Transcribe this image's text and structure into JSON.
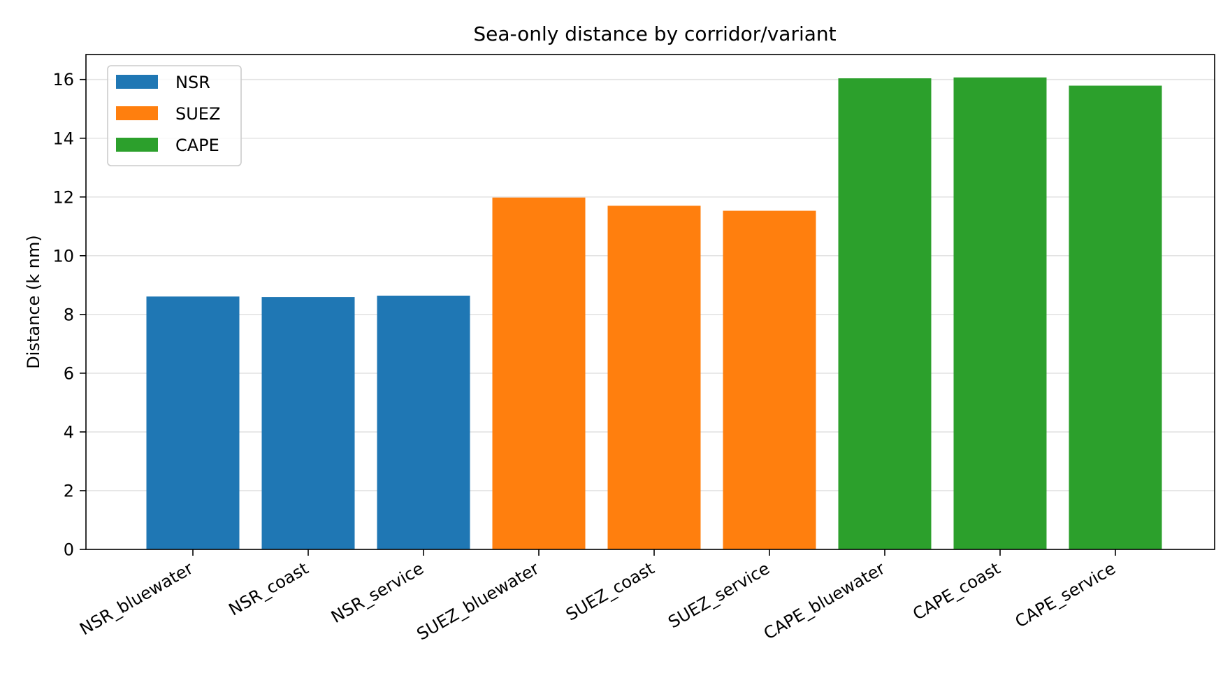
{
  "chart_data": {
    "type": "bar",
    "title": "Sea-only distance by corridor/variant",
    "xlabel": "",
    "ylabel": "Distance (k nm)",
    "ylim": [
      0,
      16.85
    ],
    "yticks": [
      0,
      2,
      4,
      6,
      8,
      10,
      12,
      14,
      16
    ],
    "grid": "y-major",
    "legend_position": "upper-left",
    "categories": [
      "NSR_bluewater",
      "NSR_coast",
      "NSR_service",
      "SUEZ_bluewater",
      "SUEZ_coast",
      "SUEZ_service",
      "CAPE_bluewater",
      "CAPE_coast",
      "CAPE_service"
    ],
    "values": [
      8.61,
      8.59,
      8.64,
      11.98,
      11.7,
      11.53,
      16.04,
      16.07,
      15.79
    ],
    "bar_groups": [
      "NSR",
      "NSR",
      "NSR",
      "SUEZ",
      "SUEZ",
      "SUEZ",
      "CAPE",
      "CAPE",
      "CAPE"
    ],
    "series": [
      {
        "name": "NSR",
        "color": "#1f77b4"
      },
      {
        "name": "SUEZ",
        "color": "#ff7f0e"
      },
      {
        "name": "CAPE",
        "color": "#2ca02c"
      }
    ]
  }
}
